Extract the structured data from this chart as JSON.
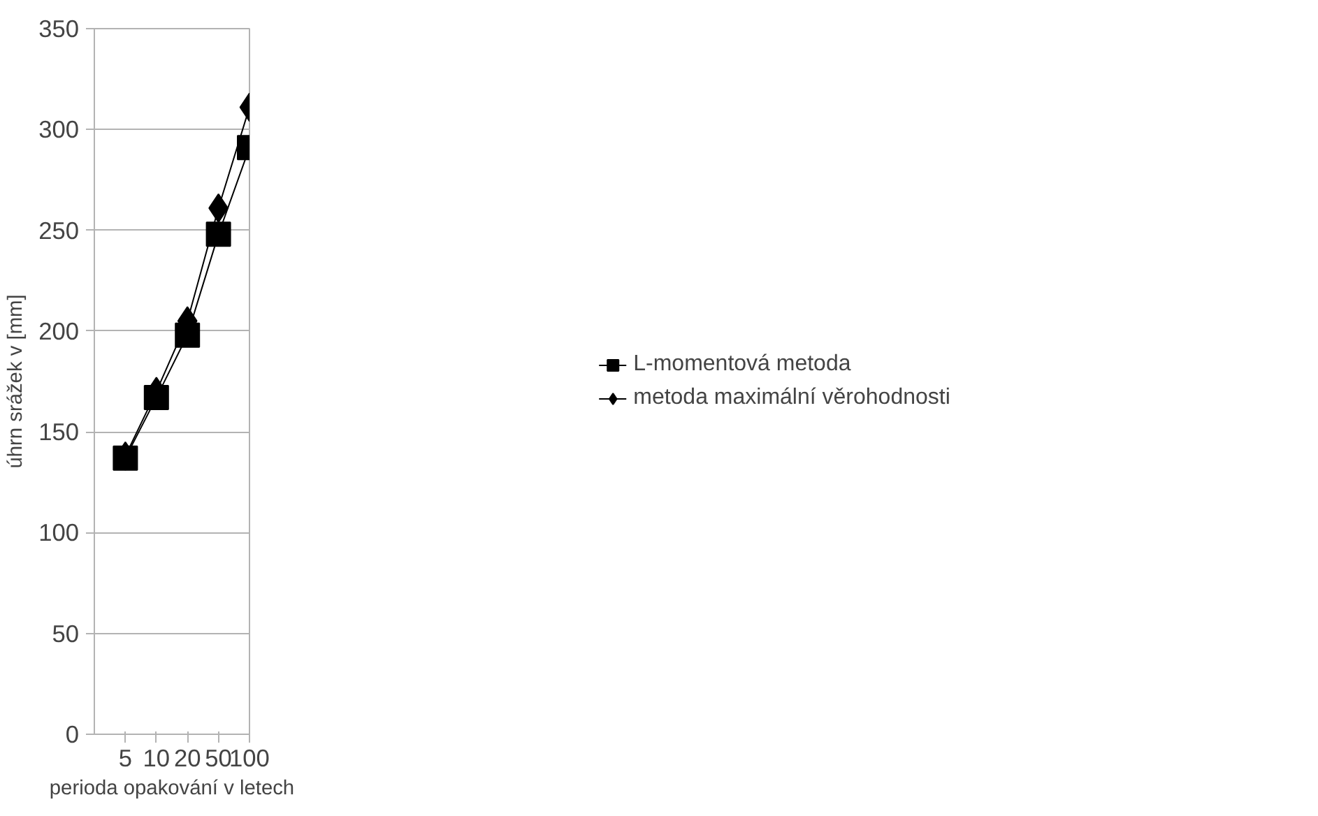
{
  "chart_data": {
    "type": "line",
    "xlabel": "perioda opakování v letech",
    "ylabel": "úhrn srážek v [mm]",
    "categories": [
      "5",
      "10",
      "20",
      "50",
      "100"
    ],
    "series": [
      {
        "name": "L-momentová metoda",
        "color": "#000000",
        "marker": "square",
        "values": [
          137,
          167,
          198,
          248,
          291
        ]
      },
      {
        "name": "metoda maximální věrohodnosti",
        "color": "#000000",
        "marker": "diamond",
        "values": [
          138,
          170,
          205,
          261,
          311
        ]
      }
    ],
    "ylim": [
      0,
      350
    ],
    "yticks": [
      0,
      50,
      100,
      150,
      200,
      250,
      300,
      350
    ],
    "grid": "y",
    "legend": "right",
    "line_style": "solid"
  }
}
